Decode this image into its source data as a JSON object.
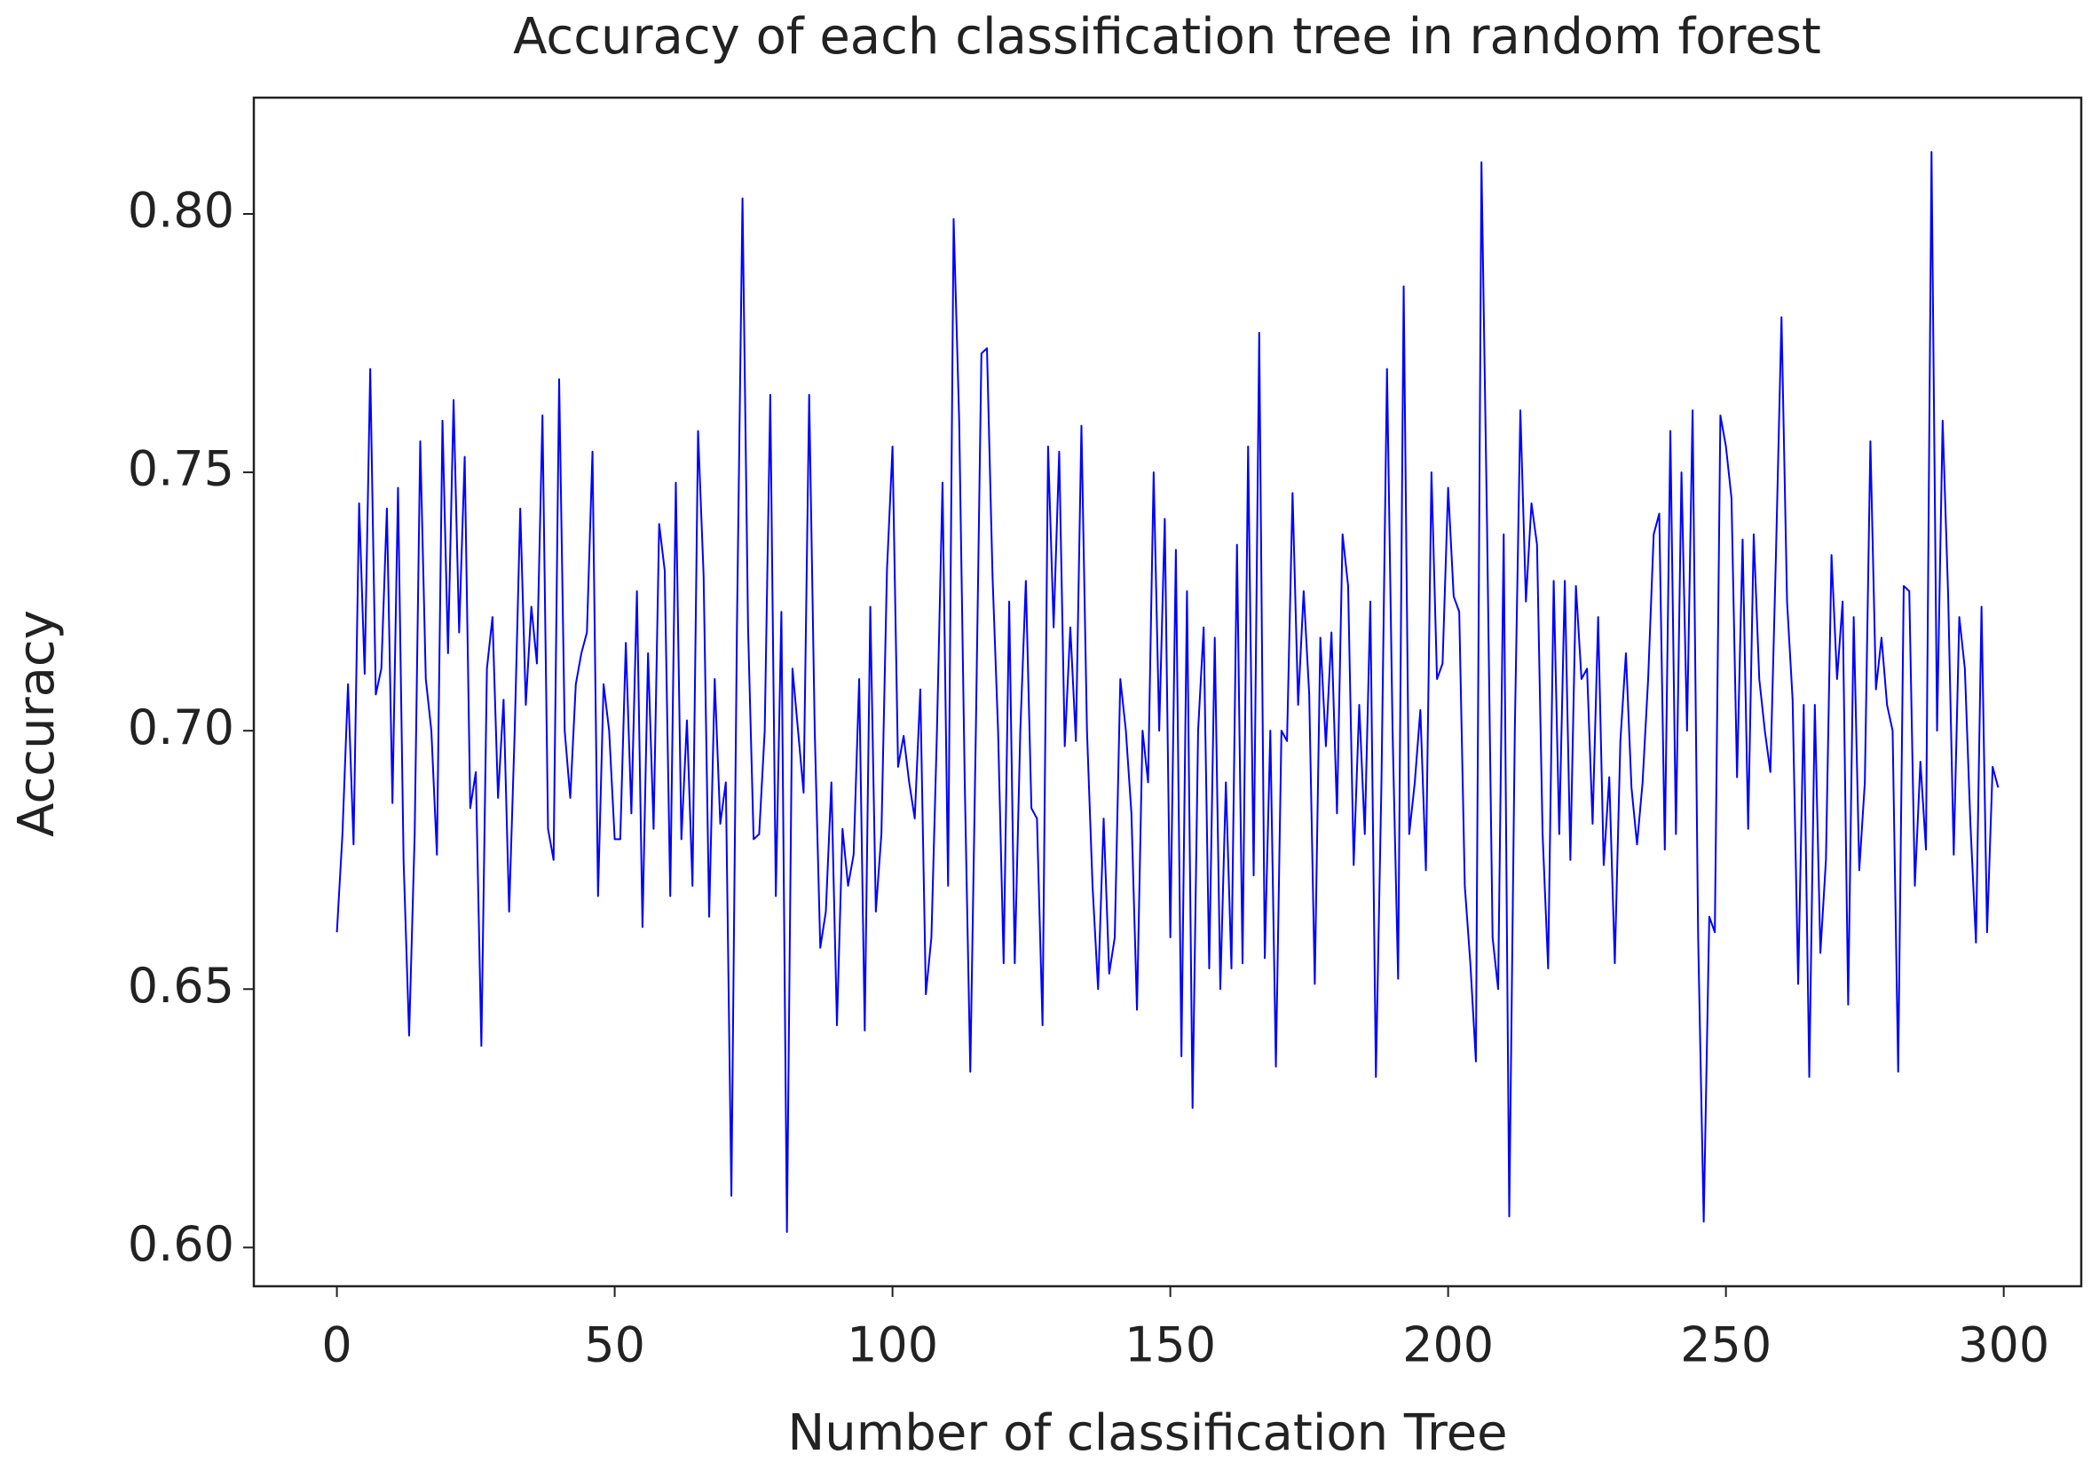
{
  "chart_data": {
    "type": "line",
    "title": "Accuracy of each classification tree in random forest",
    "xlabel": "Number of classification Tree",
    "ylabel": "Accuracy",
    "xlim": [
      -14.95,
      313.95
    ],
    "ylim": [
      0.5925,
      0.8225
    ],
    "xticks": [
      0,
      50,
      100,
      150,
      200,
      250,
      300
    ],
    "yticks": [
      {
        "value": 0.6,
        "label": "0.60"
      },
      0.65,
      {
        "value": 0.7,
        "label": "0.70"
      },
      0.75,
      {
        "value": 0.8,
        "label": "0.80"
      }
    ],
    "x": [
      0,
      1,
      2,
      3,
      4,
      5,
      6,
      7,
      8,
      9,
      10,
      11,
      12,
      13,
      14,
      15,
      16,
      17,
      18,
      19,
      20,
      21,
      22,
      23,
      24,
      25,
      26,
      27,
      28,
      29,
      30,
      31,
      32,
      33,
      34,
      35,
      36,
      37,
      38,
      39,
      40,
      41,
      42,
      43,
      44,
      45,
      46,
      47,
      48,
      49,
      50,
      51,
      52,
      53,
      54,
      55,
      56,
      57,
      58,
      59,
      60,
      61,
      62,
      63,
      64,
      65,
      66,
      67,
      68,
      69,
      70,
      71,
      72,
      73,
      74,
      75,
      76,
      77,
      78,
      79,
      80,
      81,
      82,
      83,
      84,
      85,
      86,
      87,
      88,
      89,
      90,
      91,
      92,
      93,
      94,
      95,
      96,
      97,
      98,
      99,
      100,
      101,
      102,
      103,
      104,
      105,
      106,
      107,
      108,
      109,
      110,
      111,
      112,
      113,
      114,
      115,
      116,
      117,
      118,
      119,
      120,
      121,
      122,
      123,
      124,
      125,
      126,
      127,
      128,
      129,
      130,
      131,
      132,
      133,
      134,
      135,
      136,
      137,
      138,
      139,
      140,
      141,
      142,
      143,
      144,
      145,
      146,
      147,
      148,
      149,
      150,
      151,
      152,
      153,
      154,
      155,
      156,
      157,
      158,
      159,
      160,
      161,
      162,
      163,
      164,
      165,
      166,
      167,
      168,
      169,
      170,
      171,
      172,
      173,
      174,
      175,
      176,
      177,
      178,
      179,
      180,
      181,
      182,
      183,
      184,
      185,
      186,
      187,
      188,
      189,
      190,
      191,
      192,
      193,
      194,
      195,
      196,
      197,
      198,
      199,
      200,
      201,
      202,
      203,
      204,
      205,
      206,
      207,
      208,
      209,
      210,
      211,
      212,
      213,
      214,
      215,
      216,
      217,
      218,
      219,
      220,
      221,
      222,
      223,
      224,
      225,
      226,
      227,
      228,
      229,
      230,
      231,
      232,
      233,
      234,
      235,
      236,
      237,
      238,
      239,
      240,
      241,
      242,
      243,
      244,
      245,
      246,
      247,
      248,
      249,
      250,
      251,
      252,
      253,
      254,
      255,
      256,
      257,
      258,
      259,
      260,
      261,
      262,
      263,
      264,
      265,
      266,
      267,
      268,
      269,
      270,
      271,
      272,
      273,
      274,
      275,
      276,
      277,
      278,
      279,
      280,
      281,
      282,
      283,
      284,
      285,
      286,
      287,
      288,
      289,
      290,
      291,
      292,
      293,
      294,
      295,
      296,
      297,
      298,
      299
    ],
    "series": [
      {
        "color": "#0000ff",
        "values": [
          0.661,
          0.68,
          0.709,
          0.678,
          0.744,
          0.711,
          0.77,
          0.707,
          0.712,
          0.743,
          0.686,
          0.747,
          0.675,
          0.641,
          0.68,
          0.756,
          0.71,
          0.7,
          0.676,
          0.76,
          0.715,
          0.764,
          0.719,
          0.753,
          0.685,
          0.692,
          0.639,
          0.712,
          0.722,
          0.687,
          0.706,
          0.665,
          0.7,
          0.743,
          0.705,
          0.724,
          0.713,
          0.761,
          0.681,
          0.675,
          0.768,
          0.7,
          0.687,
          0.709,
          0.715,
          0.719,
          0.754,
          0.668,
          0.709,
          0.7,
          0.679,
          0.679,
          0.717,
          0.684,
          0.727,
          0.662,
          0.715,
          0.681,
          0.74,
          0.731,
          0.668,
          0.748,
          0.679,
          0.702,
          0.67,
          0.758,
          0.73,
          0.664,
          0.71,
          0.682,
          0.69,
          0.61,
          0.72,
          0.803,
          0.72,
          0.679,
          0.68,
          0.7,
          0.765,
          0.668,
          0.723,
          0.603,
          0.712,
          0.7,
          0.688,
          0.765,
          0.7,
          0.658,
          0.665,
          0.69,
          0.643,
          0.681,
          0.67,
          0.676,
          0.71,
          0.642,
          0.724,
          0.665,
          0.68,
          0.731,
          0.755,
          0.693,
          0.699,
          0.69,
          0.683,
          0.708,
          0.649,
          0.66,
          0.7,
          0.748,
          0.67,
          0.799,
          0.76,
          0.69,
          0.634,
          0.7,
          0.773,
          0.774,
          0.73,
          0.7,
          0.655,
          0.725,
          0.655,
          0.7,
          0.729,
          0.685,
          0.683,
          0.643,
          0.755,
          0.72,
          0.754,
          0.697,
          0.72,
          0.698,
          0.759,
          0.7,
          0.67,
          0.65,
          0.683,
          0.653,
          0.66,
          0.71,
          0.7,
          0.684,
          0.646,
          0.7,
          0.69,
          0.75,
          0.7,
          0.741,
          0.66,
          0.735,
          0.637,
          0.727,
          0.627,
          0.7,
          0.72,
          0.654,
          0.718,
          0.65,
          0.69,
          0.654,
          0.736,
          0.655,
          0.755,
          0.672,
          0.777,
          0.656,
          0.7,
          0.635,
          0.7,
          0.698,
          0.746,
          0.705,
          0.727,
          0.707,
          0.651,
          0.718,
          0.697,
          0.719,
          0.684,
          0.738,
          0.728,
          0.674,
          0.705,
          0.68,
          0.725,
          0.633,
          0.69,
          0.77,
          0.7,
          0.652,
          0.786,
          0.68,
          0.69,
          0.704,
          0.673,
          0.75,
          0.71,
          0.713,
          0.747,
          0.726,
          0.723,
          0.67,
          0.655,
          0.636,
          0.81,
          0.74,
          0.66,
          0.65,
          0.738,
          0.606,
          0.7,
          0.762,
          0.725,
          0.744,
          0.736,
          0.68,
          0.654,
          0.729,
          0.68,
          0.729,
          0.675,
          0.728,
          0.71,
          0.712,
          0.682,
          0.722,
          0.674,
          0.691,
          0.655,
          0.698,
          0.715,
          0.689,
          0.678,
          0.69,
          0.71,
          0.738,
          0.742,
          0.677,
          0.758,
          0.68,
          0.75,
          0.7,
          0.762,
          0.66,
          0.605,
          0.664,
          0.661,
          0.761,
          0.755,
          0.745,
          0.691,
          0.737,
          0.681,
          0.738,
          0.71,
          0.7,
          0.692,
          0.734,
          0.78,
          0.725,
          0.706,
          0.651,
          0.705,
          0.633,
          0.705,
          0.657,
          0.675,
          0.734,
          0.71,
          0.725,
          0.647,
          0.722,
          0.673,
          0.69,
          0.756,
          0.708,
          0.718,
          0.705,
          0.7,
          0.634,
          0.728,
          0.727,
          0.67,
          0.694,
          0.677,
          0.812,
          0.7,
          0.76,
          0.726,
          0.676,
          0.722,
          0.712,
          0.682,
          0.659,
          0.724,
          0.661,
          0.693,
          0.689
        ]
      }
    ]
  }
}
